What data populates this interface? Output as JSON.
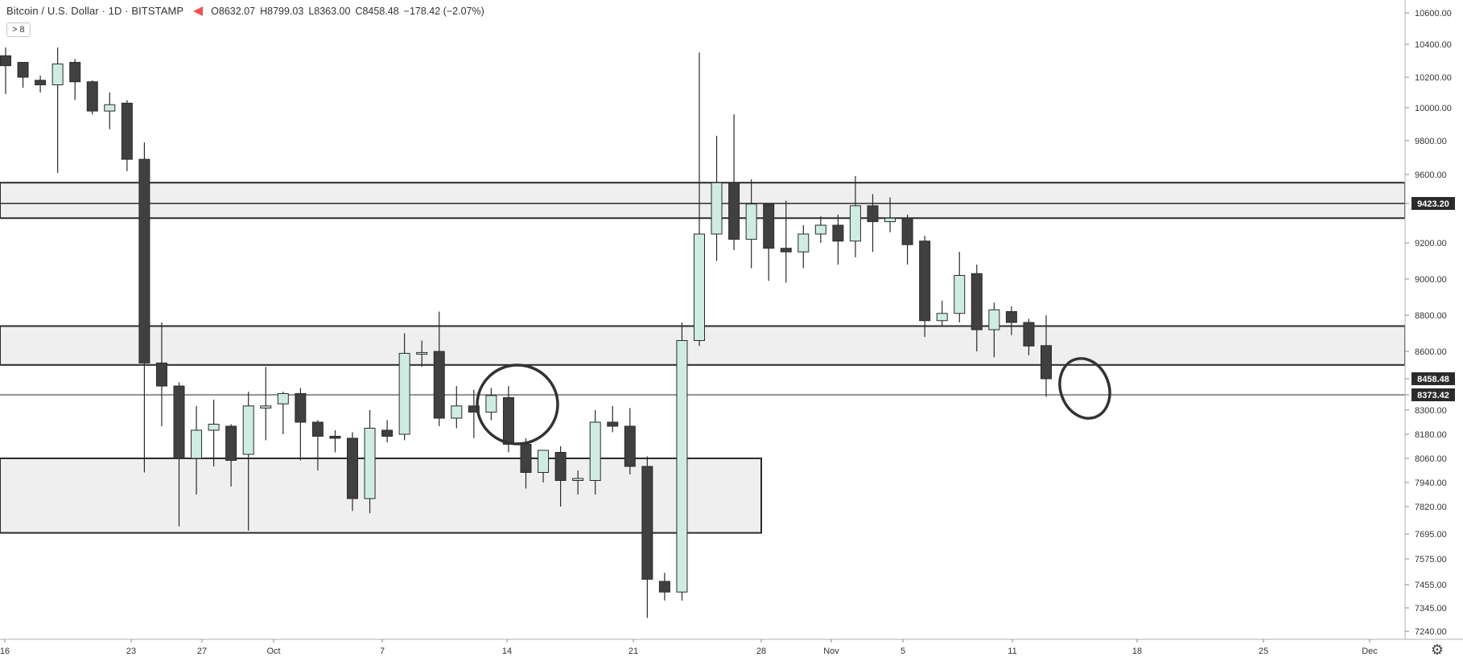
{
  "legend": {
    "symbol": "Bitcoin / U.S. Dollar · 1D · BITSTAMP",
    "open_label": "O",
    "open": "8632.07",
    "high_label": "H",
    "high": "8799.03",
    "low_label": "L",
    "low": "8363.00",
    "close_label": "C",
    "close": "8458.48",
    "change": "−178.42 (−2.07%)"
  },
  "collapse_button": "> 8",
  "chart_data": {
    "type": "candlestick",
    "ylim": [
      7240,
      10600
    ],
    "y_ticks": [
      "10600.00",
      "10400.00",
      "10200.00",
      "10000.00",
      "9800.00",
      "9600.00",
      "9423.20",
      "9200.00",
      "9000.00",
      "8800.00",
      "8600.00",
      "8458.48",
      "8373.42",
      "8300.00",
      "8180.00",
      "8060.00",
      "7940.00",
      "7820.00",
      "7695.00",
      "7575.00",
      "7455.00",
      "7345.00",
      "7240.00"
    ],
    "x_ticks": [
      "16",
      "23",
      "27",
      "Oct",
      "7",
      "14",
      "21",
      "28",
      "Nov",
      "5",
      "11",
      "18",
      "25",
      "Dec"
    ],
    "current_price": "8458.48",
    "crosshair_price": "8373.42",
    "resistance_price": "9423.20",
    "zones": [
      {
        "from": 9340,
        "to": 9550,
        "extends": "right"
      },
      {
        "from": 8530,
        "to": 8740,
        "extends": "right"
      },
      {
        "from": 7700,
        "to": 8060,
        "extends": "to Oct 28"
      }
    ],
    "candles": [
      {
        "o": 10330,
        "h": 10380,
        "l": 10090,
        "c": 10270
      },
      {
        "o": 10290,
        "h": 10290,
        "l": 10130,
        "c": 10200
      },
      {
        "o": 10180,
        "h": 10210,
        "l": 10100,
        "c": 10150
      },
      {
        "o": 10150,
        "h": 10380,
        "l": 9610,
        "c": 10280
      },
      {
        "o": 10290,
        "h": 10310,
        "l": 10050,
        "c": 10170
      },
      {
        "o": 10170,
        "h": 10180,
        "l": 9960,
        "c": 9980
      },
      {
        "o": 9980,
        "h": 10100,
        "l": 9870,
        "c": 10020
      },
      {
        "o": 10030,
        "h": 10050,
        "l": 9620,
        "c": 9690
      },
      {
        "o": 9690,
        "h": 9790,
        "l": 7990,
        "c": 8540
      },
      {
        "o": 8540,
        "h": 8760,
        "l": 8220,
        "c": 8420
      },
      {
        "o": 8420,
        "h": 8440,
        "l": 7730,
        "c": 8060
      },
      {
        "o": 8060,
        "h": 8320,
        "l": 7880,
        "c": 8200
      },
      {
        "o": 8200,
        "h": 8350,
        "l": 8020,
        "c": 8230
      },
      {
        "o": 8220,
        "h": 8230,
        "l": 7920,
        "c": 8050
      },
      {
        "o": 8080,
        "h": 8390,
        "l": 7710,
        "c": 8320
      },
      {
        "o": 8310,
        "h": 8520,
        "l": 8150,
        "c": 8320
      },
      {
        "o": 8330,
        "h": 8390,
        "l": 8180,
        "c": 8380
      },
      {
        "o": 8380,
        "h": 8410,
        "l": 8050,
        "c": 8240
      },
      {
        "o": 8240,
        "h": 8250,
        "l": 8000,
        "c": 8170
      },
      {
        "o": 8170,
        "h": 8200,
        "l": 8090,
        "c": 8160
      },
      {
        "o": 8160,
        "h": 8190,
        "l": 7800,
        "c": 7860
      },
      {
        "o": 7860,
        "h": 8300,
        "l": 7790,
        "c": 8210
      },
      {
        "o": 8200,
        "h": 8250,
        "l": 8140,
        "c": 8170
      },
      {
        "o": 8180,
        "h": 8700,
        "l": 8150,
        "c": 8590
      },
      {
        "o": 8590,
        "h": 8660,
        "l": 8520,
        "c": 8590
      },
      {
        "o": 8600,
        "h": 8820,
        "l": 8220,
        "c": 8260
      },
      {
        "o": 8260,
        "h": 8420,
        "l": 8210,
        "c": 8320
      },
      {
        "o": 8320,
        "h": 8400,
        "l": 8160,
        "c": 8290
      },
      {
        "o": 8290,
        "h": 8410,
        "l": 8250,
        "c": 8370
      },
      {
        "o": 8360,
        "h": 8420,
        "l": 8090,
        "c": 8130
      },
      {
        "o": 8130,
        "h": 8160,
        "l": 7910,
        "c": 7990
      },
      {
        "o": 7990,
        "h": 8080,
        "l": 7940,
        "c": 8100
      },
      {
        "o": 8090,
        "h": 8120,
        "l": 7820,
        "c": 7950
      },
      {
        "o": 7950,
        "h": 8000,
        "l": 7880,
        "c": 7960
      },
      {
        "o": 7950,
        "h": 8300,
        "l": 7880,
        "c": 8240
      },
      {
        "o": 8240,
        "h": 8320,
        "l": 8190,
        "c": 8220
      },
      {
        "o": 8220,
        "h": 8310,
        "l": 7980,
        "c": 8020
      },
      {
        "o": 8020,
        "h": 8070,
        "l": 7300,
        "c": 7480
      },
      {
        "o": 7470,
        "h": 7510,
        "l": 7380,
        "c": 7420
      },
      {
        "o": 7420,
        "h": 8760,
        "l": 7380,
        "c": 8660
      },
      {
        "o": 8660,
        "h": 10350,
        "l": 8630,
        "c": 9250
      },
      {
        "o": 9250,
        "h": 9830,
        "l": 9100,
        "c": 9550
      },
      {
        "o": 9550,
        "h": 9960,
        "l": 9160,
        "c": 9220
      },
      {
        "o": 9220,
        "h": 9570,
        "l": 9060,
        "c": 9420
      },
      {
        "o": 9420,
        "h": 9420,
        "l": 8990,
        "c": 9170
      },
      {
        "o": 9170,
        "h": 9440,
        "l": 8980,
        "c": 9150
      },
      {
        "o": 9150,
        "h": 9300,
        "l": 9060,
        "c": 9250
      },
      {
        "o": 9250,
        "h": 9350,
        "l": 9200,
        "c": 9300
      },
      {
        "o": 9300,
        "h": 9360,
        "l": 9080,
        "c": 9210
      },
      {
        "o": 9210,
        "h": 9590,
        "l": 9120,
        "c": 9410
      },
      {
        "o": 9410,
        "h": 9480,
        "l": 9150,
        "c": 9320
      },
      {
        "o": 9320,
        "h": 9460,
        "l": 9260,
        "c": 9340
      },
      {
        "o": 9340,
        "h": 9360,
        "l": 9080,
        "c": 9190
      },
      {
        "o": 9210,
        "h": 9240,
        "l": 8680,
        "c": 8770
      },
      {
        "o": 8770,
        "h": 8880,
        "l": 8740,
        "c": 8810
      },
      {
        "o": 8810,
        "h": 9150,
        "l": 8760,
        "c": 9020
      },
      {
        "o": 9030,
        "h": 9080,
        "l": 8600,
        "c": 8720
      },
      {
        "o": 8720,
        "h": 8870,
        "l": 8570,
        "c": 8830
      },
      {
        "o": 8820,
        "h": 8850,
        "l": 8690,
        "c": 8760
      },
      {
        "o": 8760,
        "h": 8780,
        "l": 8580,
        "c": 8630
      },
      {
        "o": 8632.07,
        "h": 8799.03,
        "l": 8363.0,
        "c": 8458.48
      }
    ],
    "annotations": [
      "ellipse around Oct 12–15 candles",
      "ellipse around last candle"
    ]
  },
  "colors": {
    "up_fill": "#cfece4",
    "down_fill": "#404040",
    "candle_stroke": "#2b2b2b",
    "zone_fill": "#efefef",
    "line": "#2b2b2b",
    "tag_bg": "#2b2b2b",
    "tag_text": "#ffffff"
  }
}
